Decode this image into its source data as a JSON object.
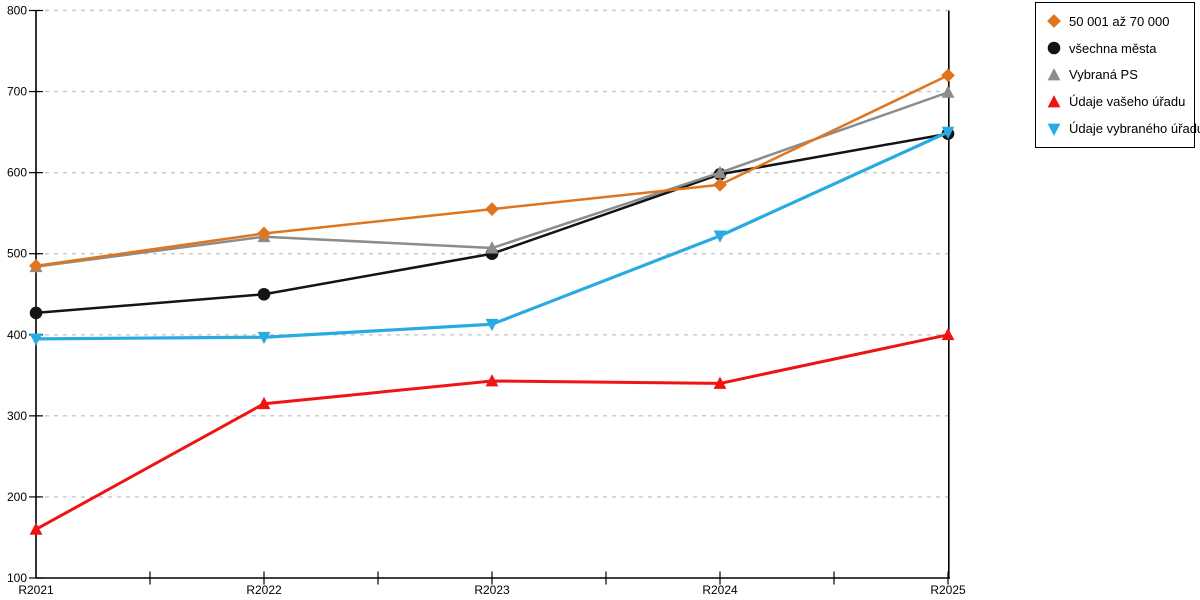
{
  "chart_data": {
    "type": "line",
    "title": "",
    "xlabel": "",
    "ylabel": "",
    "categories": [
      "R2021",
      "R2022",
      "R2023",
      "R2024",
      "R2025"
    ],
    "series": [
      {
        "name": "50 001 až 70 000",
        "marker": "diamond",
        "color": "#E0751F",
        "line_width": 2.5,
        "values": [
          485,
          525,
          555,
          585,
          720
        ]
      },
      {
        "name": "všechna města",
        "marker": "circle",
        "color": "#141414",
        "line_width": 2.5,
        "values": [
          427,
          450,
          500,
          598,
          648
        ]
      },
      {
        "name": "Vybraná PS",
        "marker": "triangle-up",
        "color": "#8C8C8C",
        "line_width": 2.5,
        "values": [
          484,
          521,
          507,
          600,
          699
        ]
      },
      {
        "name": "Údaje vašeho úřadu",
        "marker": "triangle-up",
        "color": "#EE1414",
        "line_width": 3,
        "values": [
          160,
          315,
          343,
          340,
          400
        ]
      },
      {
        "name": "Údaje vybraného úřadu",
        "marker": "triangle-down",
        "color": "#29ABE2",
        "line_width": 3.2,
        "values": [
          395,
          397,
          413,
          522,
          650
        ]
      }
    ],
    "ylim": [
      100,
      800
    ],
    "ytick_step": 100,
    "y_tick_labels": [
      "100",
      "200",
      "300",
      "400",
      "500",
      "600",
      "700",
      "800"
    ],
    "grid": "horizontal-dashed",
    "legend_position": "outside-top-right"
  },
  "colors": {
    "background": "#FFFFFF",
    "grid": "#C7C7C7",
    "axis": "#000000",
    "tick_label": "#000000",
    "legend_border": "#000000",
    "legend_background": "#FFFFFF"
  }
}
